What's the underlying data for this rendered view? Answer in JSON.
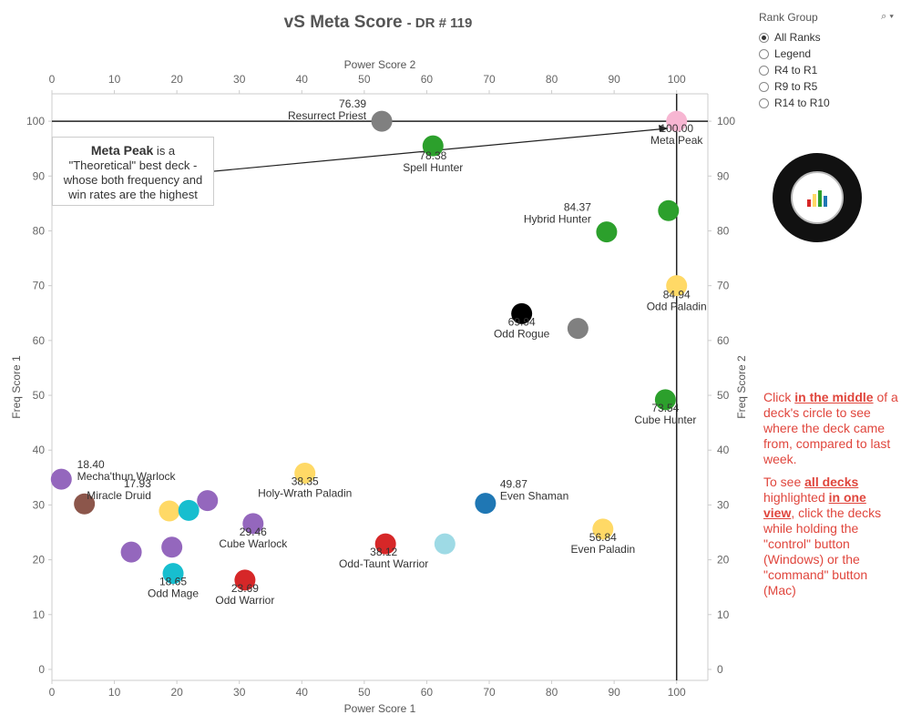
{
  "title": {
    "main": "vS Meta Score",
    "sub": "- DR # 119"
  },
  "rank_group": {
    "label": "Rank Group",
    "options": [
      "All Ranks",
      "Legend",
      "R4 to R1",
      "R9 to R5",
      "R14 to R10"
    ],
    "selected": "All Ranks"
  },
  "callout": {
    "bold": "Meta Peak",
    "text1": " is a",
    "text2": "\"Theoretical\" best deck -",
    "text3": "whose both frequency and",
    "text4": "win rates are the highest"
  },
  "note": {
    "p1_a": "Click ",
    "p1_b": "in the middle",
    "p1_c": " of a deck's circle to see where the deck came from, compared to last week.",
    "p2_a": "To see ",
    "p2_b": "all decks",
    "p2_c": " highlighted ",
    "p2_d": "in one view",
    "p2_e": ", click the decks while holding the \"control\" button (Windows) or the \"command\" button (Mac)"
  },
  "colors": {
    "gray": "#808080",
    "green": "#2ca02c",
    "yellow": "#ffd966",
    "purple": "#9467bd",
    "teal": "#17becf",
    "red": "#d62728",
    "blue": "#1f77b4",
    "lightblue": "#9edae5",
    "brown": "#8c564b",
    "pink": "#f7b6d2",
    "black": "#000000"
  },
  "chart_data": {
    "type": "scatter",
    "xlabel": "Power Score 1",
    "xlabel_top": "Power Score 2",
    "ylabel": "Freq Score 1",
    "ylabel_right": "Freq Score 2",
    "xlim": [
      0,
      105
    ],
    "ylim": [
      -2,
      105
    ],
    "xticks": [
      0,
      10,
      20,
      30,
      40,
      50,
      60,
      70,
      80,
      90,
      100
    ],
    "yticks": [
      0,
      10,
      20,
      30,
      40,
      50,
      60,
      70,
      80,
      90,
      100
    ],
    "grid": false,
    "reference_lines": {
      "x": 100,
      "y": 100
    },
    "points": [
      {
        "name": "Meta Peak",
        "score": "100.00",
        "x": 100,
        "y": 100,
        "color": "pink"
      },
      {
        "name": "Resurrect Priest",
        "score": "76.39",
        "x": 52.8,
        "y": 100,
        "color": "gray"
      },
      {
        "name": "Spell Hunter",
        "score": "78.38",
        "x": 61,
        "y": 95.5,
        "color": "green"
      },
      {
        "name": "",
        "score": "",
        "x": 98.7,
        "y": 83.7,
        "color": "green"
      },
      {
        "name": "Hybrid Hunter",
        "score": "84.37",
        "x": 88.8,
        "y": 79.8,
        "color": "green"
      },
      {
        "name": "Odd Paladin",
        "score": "84.94",
        "x": 100,
        "y": 70,
        "color": "yellow"
      },
      {
        "name": "Odd Rogue",
        "score": "69.94",
        "x": 75.2,
        "y": 64.9,
        "color": "black"
      },
      {
        "name": "",
        "score": "",
        "x": 84.2,
        "y": 62.2,
        "color": "gray"
      },
      {
        "name": "Cube Hunter",
        "score": "73.54",
        "x": 98.2,
        "y": 49.2,
        "color": "green"
      },
      {
        "name": "",
        "score": "",
        "x": 1.5,
        "y": 34.7,
        "color": "purple"
      },
      {
        "name": "Mecha'thun Warlock",
        "score": "18.40",
        "x": 5.2,
        "y": 30.2,
        "color": "brown"
      },
      {
        "name": "Holy-Wrath Paladin",
        "score": "38.35",
        "x": 40.5,
        "y": 35.8,
        "color": "yellow"
      },
      {
        "name": "Even Shaman",
        "score": "49.87",
        "x": 69.4,
        "y": 30.3,
        "color": "blue"
      },
      {
        "name": "Miracle Druid",
        "score": "17.93",
        "x": 18.8,
        "y": 28.9,
        "color": "yellow"
      },
      {
        "name": "",
        "score": "",
        "x": 21.9,
        "y": 29,
        "color": "teal"
      },
      {
        "name": "",
        "score": "",
        "x": 24.9,
        "y": 30.8,
        "color": "purple"
      },
      {
        "name": "Cube Warlock",
        "score": "29.46",
        "x": 32.2,
        "y": 26.6,
        "color": "purple"
      },
      {
        "name": "Even Paladin",
        "score": "56.84",
        "x": 88.2,
        "y": 25.6,
        "color": "yellow"
      },
      {
        "name": "Odd-Taunt Warrior",
        "score": "38.12",
        "x": 53.4,
        "y": 22.9,
        "color": "red"
      },
      {
        "name": "",
        "score": "",
        "x": 62.9,
        "y": 22.9,
        "color": "lightblue"
      },
      {
        "name": "",
        "score": "",
        "x": 12.7,
        "y": 21.4,
        "color": "purple"
      },
      {
        "name": "",
        "score": "",
        "x": 19.2,
        "y": 22.3,
        "color": "purple"
      },
      {
        "name": "Odd Mage",
        "score": "18.65",
        "x": 19.4,
        "y": 17.5,
        "color": "teal"
      },
      {
        "name": "Odd Warrior",
        "score": "23.69",
        "x": 30.9,
        "y": 16.3,
        "color": "red"
      }
    ]
  }
}
